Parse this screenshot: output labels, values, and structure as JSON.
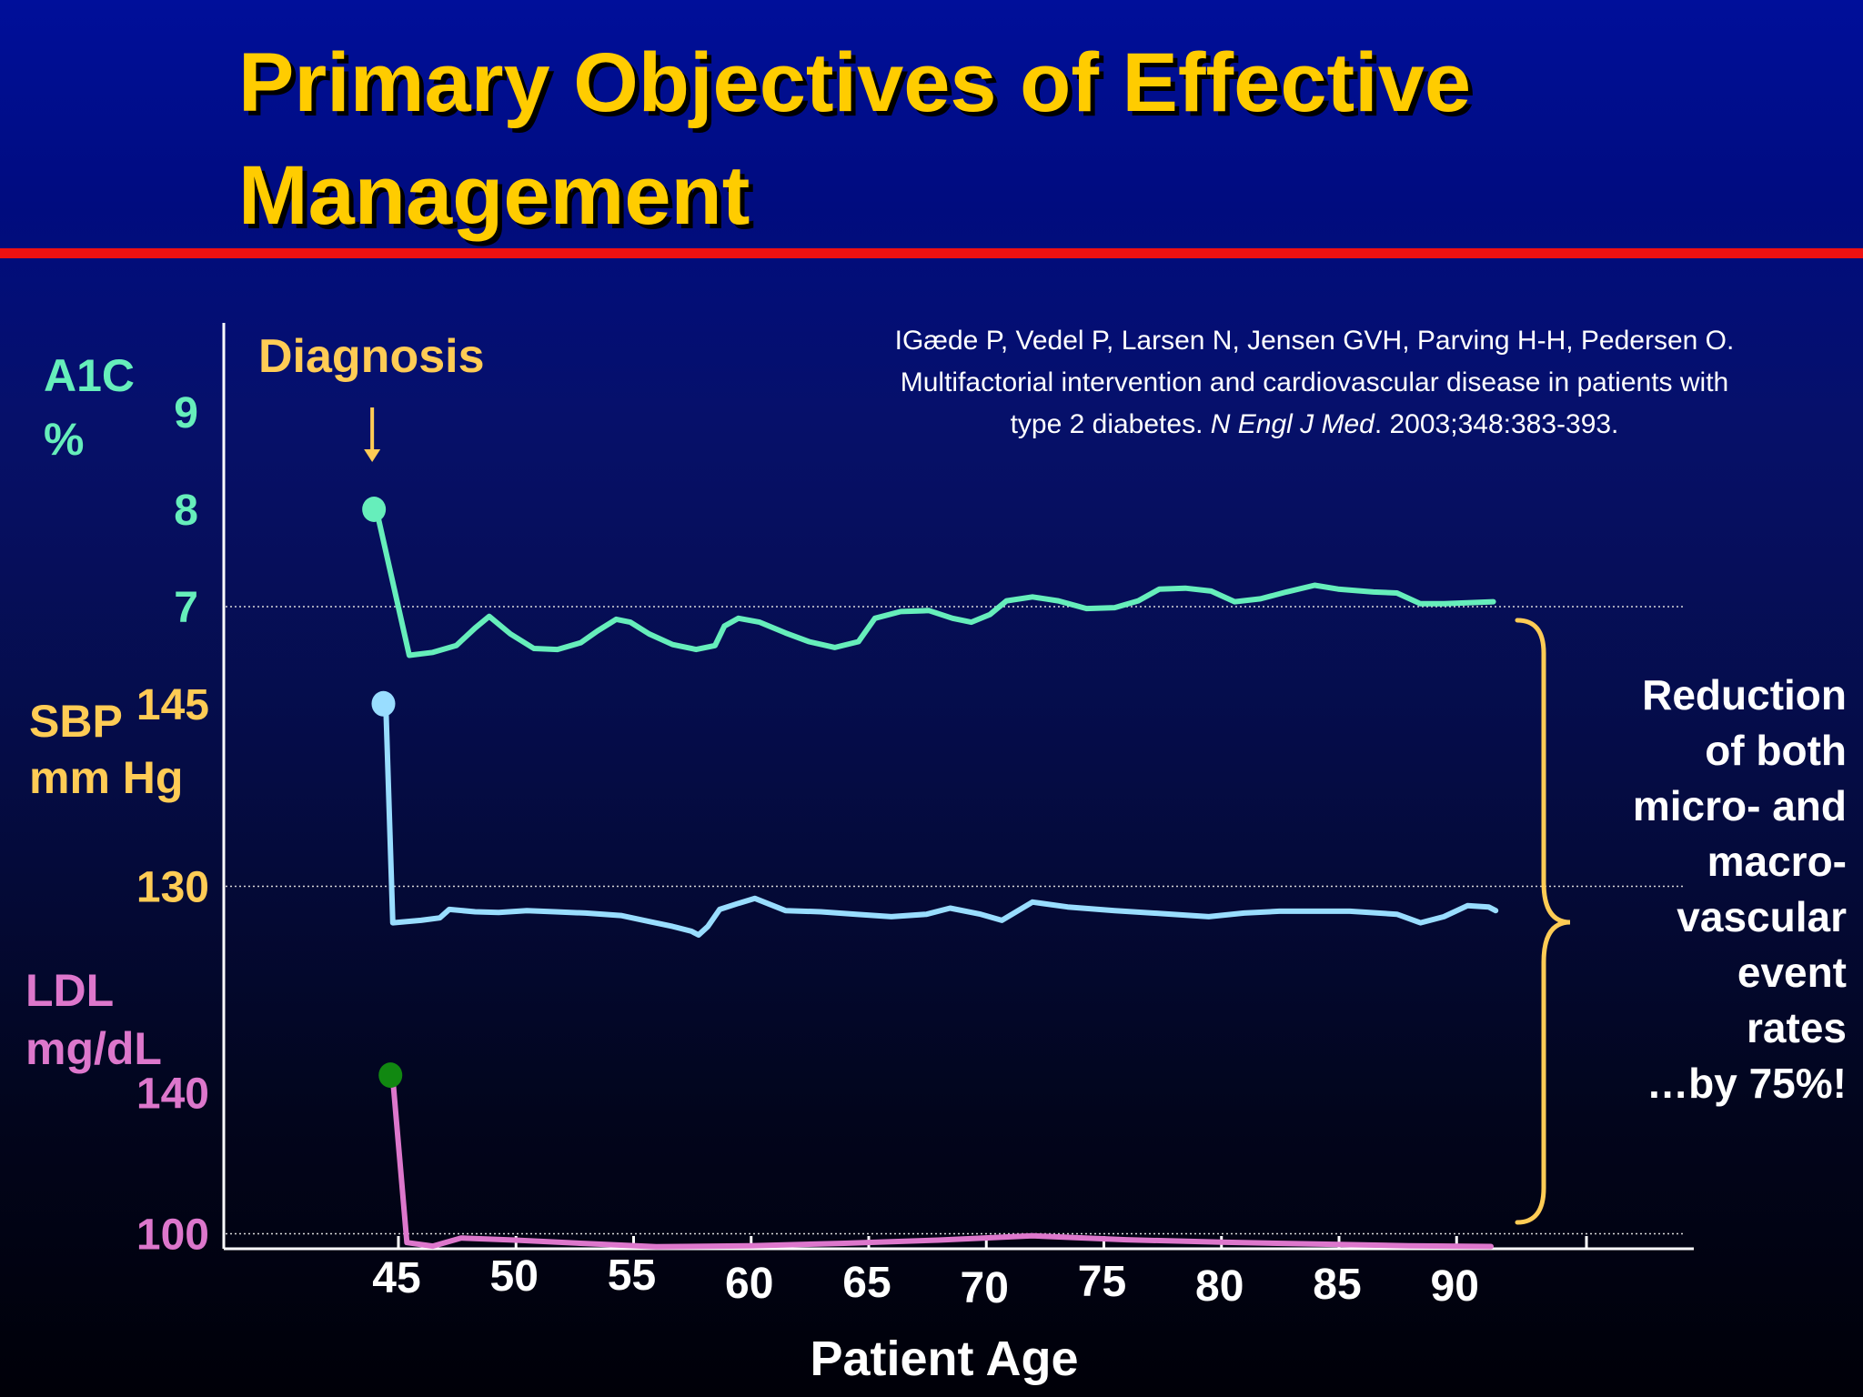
{
  "slide": {
    "title_lines": [
      "Primary Objectives of Effective",
      "Management"
    ],
    "citation": {
      "line1": "IGæde P, Vedel P, Larsen N, Jensen GVH, Parving H-H, Pedersen O.",
      "line2": "Multifactorial intervention and cardiovascular disease in patients with",
      "line3_pre": "type 2 diabetes. ",
      "line3_journal": "N Engl J Med",
      "line3_post": ". 2003;348:383-393."
    },
    "diagnosis_label": "Diagnosis",
    "reduction_lines": [
      "Reduction",
      "of both",
      "micro- and",
      "macro-",
      "vascular",
      "event",
      "rates",
      "…by 75%!"
    ],
    "colors": {
      "title": "#ffcc00",
      "rule": "#ee1111",
      "a1c": "#66eebb",
      "sbp_axis": "#ffcc55",
      "sbp_line": "#99ddff",
      "ldl": "#dd77cc",
      "ldl_start_marker": "#118811",
      "diagnosis": "#ffcc55",
      "brace": "#ffcc55",
      "axis": "#ffffff"
    }
  },
  "chart_data": {
    "type": "line",
    "x_axis": {
      "label": "Patient Age",
      "ticks": [
        45,
        50,
        55,
        60,
        65,
        70,
        75,
        80,
        85,
        90
      ],
      "range": [
        40,
        97
      ]
    },
    "diagnosis_age": 44,
    "panels": [
      {
        "name": "A1C",
        "axis_label": [
          "A1C",
          "%"
        ],
        "ticks": [
          9,
          8,
          7
        ],
        "range": [
          5,
          10
        ],
        "reference": 7,
        "color_key": "a1c",
        "start": {
          "x": 44,
          "y": 8.0
        },
        "points": [
          [
            44.1,
            8.0
          ],
          [
            45.5,
            6.5
          ],
          [
            46.5,
            6.53
          ],
          [
            47.5,
            6.6
          ],
          [
            48.3,
            6.78
          ],
          [
            48.9,
            6.9
          ],
          [
            49.8,
            6.72
          ],
          [
            50.8,
            6.57
          ],
          [
            51.8,
            6.56
          ],
          [
            52.8,
            6.63
          ],
          [
            53.5,
            6.75
          ],
          [
            54.3,
            6.87
          ],
          [
            54.9,
            6.84
          ],
          [
            55.7,
            6.72
          ],
          [
            56.7,
            6.61
          ],
          [
            57.7,
            6.56
          ],
          [
            58.5,
            6.6
          ],
          [
            58.9,
            6.8
          ],
          [
            59.5,
            6.88
          ],
          [
            60.4,
            6.84
          ],
          [
            61.5,
            6.73
          ],
          [
            62.5,
            6.64
          ],
          [
            63.6,
            6.58
          ],
          [
            64.6,
            6.64
          ],
          [
            65.3,
            6.88
          ],
          [
            66.4,
            6.95
          ],
          [
            67.6,
            6.96
          ],
          [
            68.6,
            6.88
          ],
          [
            69.4,
            6.84
          ],
          [
            70.2,
            6.92
          ],
          [
            70.9,
            7.06
          ],
          [
            72.0,
            7.1
          ],
          [
            73.1,
            7.06
          ],
          [
            74.3,
            6.98
          ],
          [
            75.5,
            6.99
          ],
          [
            76.5,
            7.06
          ],
          [
            77.4,
            7.18
          ],
          [
            78.5,
            7.19
          ],
          [
            79.6,
            7.16
          ],
          [
            80.6,
            7.05
          ],
          [
            81.7,
            7.08
          ],
          [
            82.8,
            7.15
          ],
          [
            84.0,
            7.22
          ],
          [
            85.0,
            7.18
          ],
          [
            86.5,
            7.15
          ],
          [
            87.5,
            7.14
          ],
          [
            88.5,
            7.03
          ],
          [
            89.5,
            7.03
          ],
          [
            90.5,
            7.04
          ],
          [
            91.6,
            7.05
          ]
        ]
      },
      {
        "name": "SBP",
        "axis_label": [
          "SBP",
          "mm Hg"
        ],
        "ticks": [
          145,
          130
        ],
        "range": [
          110,
          155
        ],
        "reference": 130,
        "color_key": "sbp_line",
        "start": {
          "x": 44.4,
          "y": 145
        },
        "points": [
          [
            44.5,
            145
          ],
          [
            44.8,
            127
          ],
          [
            46.0,
            127.2
          ],
          [
            46.8,
            127.4
          ],
          [
            47.2,
            128.1
          ],
          [
            48.3,
            127.9
          ],
          [
            49.3,
            127.85
          ],
          [
            50.5,
            128.0
          ],
          [
            51.7,
            127.9
          ],
          [
            53.0,
            127.8
          ],
          [
            54.5,
            127.6
          ],
          [
            55.7,
            127.1
          ],
          [
            56.7,
            126.7
          ],
          [
            57.5,
            126.3
          ],
          [
            57.8,
            126.0
          ],
          [
            58.2,
            126.7
          ],
          [
            58.7,
            128.1
          ],
          [
            59.5,
            128.6
          ],
          [
            60.2,
            129.0
          ],
          [
            61.5,
            128.0
          ],
          [
            63.0,
            127.9
          ],
          [
            64.5,
            127.7
          ],
          [
            66.0,
            127.5
          ],
          [
            67.5,
            127.7
          ],
          [
            68.5,
            128.2
          ],
          [
            69.8,
            127.7
          ],
          [
            70.7,
            127.2
          ],
          [
            72.0,
            128.7
          ],
          [
            73.5,
            128.3
          ],
          [
            75.5,
            128.0
          ],
          [
            77.5,
            127.75
          ],
          [
            79.5,
            127.5
          ],
          [
            81.0,
            127.8
          ],
          [
            82.5,
            127.95
          ],
          [
            84.0,
            127.95
          ],
          [
            85.5,
            127.95
          ],
          [
            87.5,
            127.7
          ],
          [
            88.5,
            127.0
          ],
          [
            89.5,
            127.5
          ],
          [
            90.5,
            128.4
          ],
          [
            91.4,
            128.3
          ],
          [
            91.7,
            128.0
          ]
        ]
      },
      {
        "name": "LDL",
        "axis_label": [
          "LDL",
          "mg/dL"
        ],
        "ticks": [
          140,
          100
        ],
        "range": [
          80,
          160
        ],
        "reference": 100,
        "color_key": "ldl",
        "start": {
          "x": 44.7,
          "y": 145
        },
        "points": [
          [
            44.8,
            144
          ],
          [
            45.4,
            97.5
          ],
          [
            46.5,
            96.5
          ],
          [
            47.7,
            98.8
          ],
          [
            50.0,
            98.2
          ],
          [
            53.0,
            97.2
          ],
          [
            56.0,
            96.3
          ],
          [
            60.0,
            96.6
          ],
          [
            64.0,
            97.3
          ],
          [
            68.0,
            98.2
          ],
          [
            72.0,
            99.4
          ],
          [
            76.0,
            98.3
          ],
          [
            80.0,
            97.6
          ],
          [
            84.0,
            97.1
          ],
          [
            88.0,
            96.6
          ],
          [
            91.5,
            96.4
          ]
        ]
      }
    ]
  }
}
